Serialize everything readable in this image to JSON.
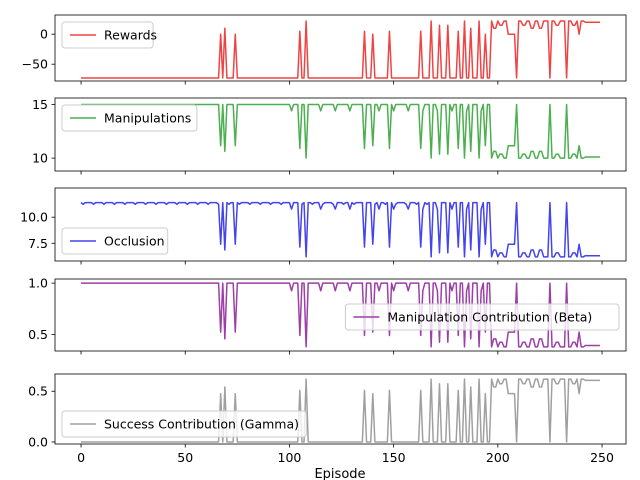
{
  "chart_data": [
    {
      "type": "line",
      "series": [
        {
          "name": "Rewards",
          "color": "#ef4444"
        }
      ],
      "ylim": [
        -78,
        32
      ],
      "yticks": [
        -50,
        0
      ],
      "legend": "upper-left",
      "base": -73,
      "top": 22,
      "segments": [
        [
          0,
          66,
          "base"
        ],
        [
          67,
          67,
          0
        ],
        [
          68,
          68,
          "base"
        ],
        [
          69,
          69,
          10
        ],
        [
          70,
          73,
          "base"
        ],
        [
          74,
          74,
          0
        ],
        [
          75,
          104,
          "base"
        ],
        [
          105,
          105,
          5
        ],
        [
          106,
          106,
          "base"
        ],
        [
          108,
          108,
          22
        ],
        [
          109,
          135,
          "base"
        ],
        [
          136,
          136,
          5
        ],
        [
          137,
          137,
          "base"
        ],
        [
          140,
          140,
          0
        ],
        [
          141,
          147,
          "base"
        ],
        [
          148,
          148,
          5
        ],
        [
          149,
          162,
          "base"
        ],
        [
          163,
          163,
          5
        ],
        [
          164,
          167,
          "base"
        ],
        [
          168,
          168,
          22
        ],
        [
          169,
          171,
          "base"
        ],
        [
          172,
          172,
          15
        ],
        [
          173,
          175,
          "base"
        ],
        [
          176,
          176,
          15
        ],
        [
          177,
          180,
          "base"
        ],
        [
          181,
          181,
          5
        ],
        [
          182,
          183,
          "base"
        ],
        [
          184,
          184,
          22
        ],
        [
          185,
          186,
          "base"
        ],
        [
          187,
          187,
          10
        ],
        [
          188,
          190,
          "base"
        ],
        [
          191,
          191,
          22
        ],
        [
          192,
          192,
          "base"
        ],
        [
          194,
          194,
          0
        ],
        [
          195,
          196,
          "base"
        ],
        [
          197,
          197,
          22
        ],
        [
          198,
          199,
          10
        ],
        [
          200,
          200,
          22
        ],
        [
          201,
          202,
          15
        ],
        [
          203,
          204,
          22
        ],
        [
          205,
          208,
          0
        ],
        [
          209,
          209,
          "base"
        ],
        [
          210,
          211,
          22
        ],
        [
          212,
          213,
          15
        ],
        [
          214,
          215,
          22
        ],
        [
          216,
          217,
          10
        ],
        [
          218,
          219,
          22
        ],
        [
          220,
          221,
          10
        ],
        [
          222,
          224,
          22
        ],
        [
          225,
          225,
          "base"
        ],
        [
          226,
          227,
          22
        ],
        [
          228,
          229,
          15
        ],
        [
          230,
          232,
          22
        ],
        [
          233,
          233,
          "base"
        ],
        [
          234,
          235,
          22
        ],
        [
          236,
          237,
          15
        ],
        [
          238,
          238,
          22
        ],
        [
          239,
          239,
          0
        ],
        [
          240,
          241,
          22
        ],
        [
          242,
          244,
          20
        ],
        [
          245,
          249,
          20
        ]
      ]
    },
    {
      "type": "line",
      "series": [
        {
          "name": "Manipulations",
          "color": "#4caf50"
        }
      ],
      "ylim": [
        8.8,
        15.6
      ],
      "yticks": [
        10,
        15
      ],
      "legend": "upper-left",
      "base": 15,
      "top": 10
    },
    {
      "type": "line",
      "series": [
        {
          "name": "Occlusion",
          "color": "#4444ee"
        }
      ],
      "ylim": [
        5.8,
        12.8
      ],
      "yticks": [
        7.5,
        10.0
      ],
      "legend": "lower-left",
      "base": 11.4,
      "top": 6.2
    },
    {
      "type": "line",
      "series": [
        {
          "name": "Manipulation Contribution (Beta)",
          "color": "#9c3fa8"
        }
      ],
      "ylim": [
        0.34,
        1.04
      ],
      "yticks": [
        0.5,
        1.0
      ],
      "legend": "center-right",
      "base": 1.0,
      "top": 0.38
    },
    {
      "type": "line",
      "series": [
        {
          "name": "Success Contribution (Gamma)",
          "color": "#a0a0a0"
        }
      ],
      "ylim": [
        -0.02,
        0.67
      ],
      "yticks": [
        0.0,
        0.5
      ],
      "legend": "lower-left",
      "base": 0.0,
      "top": 0.62
    }
  ],
  "x_axis": {
    "label": "Episode",
    "ticks": [
      0,
      50,
      100,
      150,
      200,
      250
    ],
    "xlim": [
      -12.5,
      261.5
    ],
    "n_points": 250
  }
}
